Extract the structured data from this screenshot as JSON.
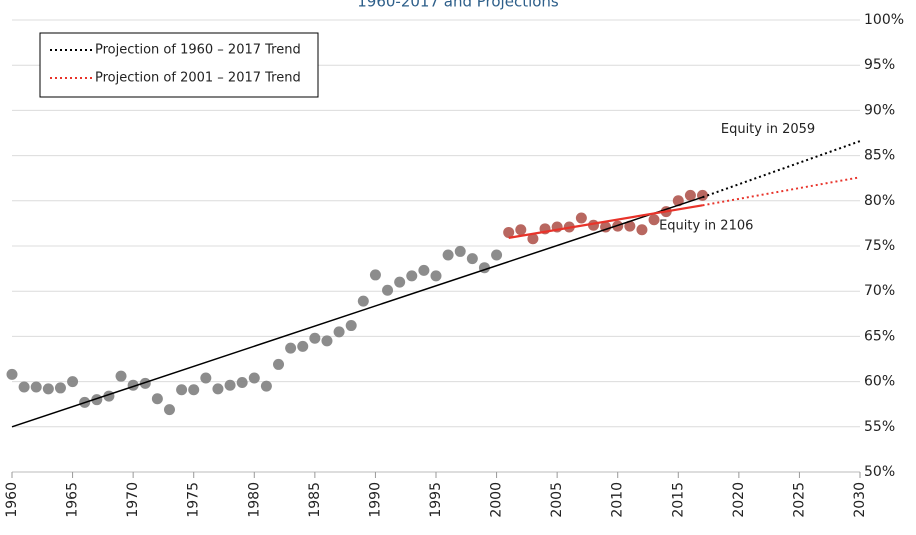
{
  "chart_data": {
    "type": "scatter",
    "title": "1960-2017 and Projections",
    "xlim": [
      1960,
      2030
    ],
    "xticks": [
      1960,
      1965,
      1970,
      1975,
      1980,
      1985,
      1990,
      1995,
      2000,
      2005,
      2010,
      2015,
      2020,
      2025,
      2030
    ],
    "ylim": [
      50,
      100
    ],
    "yticks": [
      {
        "value": 50,
        "label": "50%"
      },
      {
        "value": 55,
        "label": "55%"
      },
      {
        "value": 60,
        "label": "60%"
      },
      {
        "value": 65,
        "label": "65%"
      },
      {
        "value": 70,
        "label": "70%"
      },
      {
        "value": 75,
        "label": "75%"
      },
      {
        "value": 80,
        "label": "80%"
      },
      {
        "value": 85,
        "label": "85%"
      },
      {
        "value": 90,
        "label": "90%"
      },
      {
        "value": 95,
        "label": "95%"
      },
      {
        "value": 100,
        "label": "100%"
      }
    ],
    "grid": true,
    "legend": "upper-left",
    "points": [
      {
        "color": "#808080",
        "x": [
          1960,
          1961,
          1962,
          1963,
          1964,
          1965,
          1966,
          1967,
          1968,
          1969,
          1970,
          1971,
          1972,
          1973,
          1974,
          1975,
          1976,
          1977,
          1978,
          1979,
          1980,
          1981,
          1982,
          1983,
          1984,
          1985,
          1986,
          1987,
          1988,
          1989,
          1990,
          1991,
          1992,
          1993,
          1994,
          1995,
          1996,
          1997,
          1998,
          1999,
          2000
        ],
        "values": [
          60.8,
          59.4,
          59.4,
          59.2,
          59.3,
          60.0,
          57.7,
          58.0,
          58.4,
          60.6,
          59.6,
          59.8,
          58.1,
          56.9,
          59.1,
          59.1,
          60.4,
          59.2,
          59.6,
          59.9,
          60.4,
          59.5,
          61.9,
          63.7,
          63.9,
          64.8,
          64.5,
          65.5,
          66.2,
          68.9,
          71.8,
          70.1,
          71.0,
          71.7,
          72.3,
          71.7,
          74.0,
          74.4,
          73.6,
          72.6,
          74.0
        ]
      },
      {
        "color": "#b0574f",
        "x": [
          2001,
          2002,
          2003,
          2004,
          2005,
          2006,
          2007,
          2008,
          2009,
          2010,
          2011,
          2012,
          2013,
          2014,
          2015,
          2016,
          2017
        ],
        "values": [
          76.5,
          76.8,
          75.8,
          76.9,
          77.1,
          77.1,
          78.1,
          77.3,
          77.1,
          77.2,
          77.2,
          76.8,
          77.9,
          78.8,
          80.0,
          80.6,
          80.6
        ]
      }
    ],
    "series": [
      {
        "name": "Projection of 1960 – 2017 Trend",
        "color": "#000000",
        "x": [
          1960,
          2017,
          2030
        ],
        "values": [
          55.0,
          80.4,
          86.6
        ]
      },
      {
        "name": "Projection of 2001 – 2017 Trend",
        "color": "#e8332a",
        "x": [
          2001,
          2017,
          2030
        ],
        "values": [
          75.9,
          79.5,
          82.6
        ]
      }
    ],
    "annotations": [
      {
        "text": "Equity in 2059",
        "x": 2026.3,
        "y": 87.9,
        "color": "#222222"
      },
      {
        "text": "Equity in 2106",
        "x": 2021.2,
        "y": 77.2,
        "color": "#e8332a"
      }
    ]
  }
}
